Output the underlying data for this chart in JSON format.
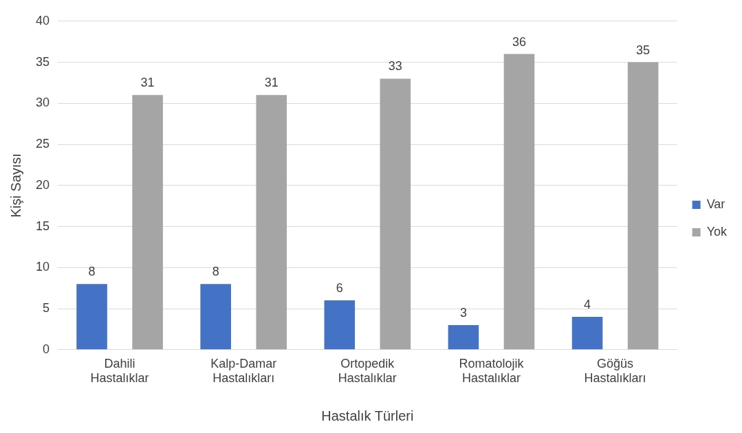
{
  "chart_data": {
    "type": "bar",
    "xlabel": "Hastalık Türleri",
    "ylabel": "Kişi Sayısı",
    "categories": [
      "Dahili Hastalıklar",
      "Kalp-Damar Hastalıkları",
      "Ortopedik Hastalıklar",
      "Romatolojik Hastalıklar",
      "Göğüs Hastalıkları"
    ],
    "series": [
      {
        "name": "Var",
        "color": "#4472c4",
        "values": [
          8,
          8,
          6,
          3,
          4
        ]
      },
      {
        "name": "Yok",
        "color": "#a5a5a5",
        "values": [
          31,
          31,
          33,
          36,
          35
        ]
      }
    ],
    "ylim": [
      0,
      40
    ],
    "yticks": [
      0,
      5,
      10,
      15,
      20,
      25,
      30,
      35,
      40
    ],
    "grid": "y",
    "legend": "right",
    "data_labels": true
  }
}
